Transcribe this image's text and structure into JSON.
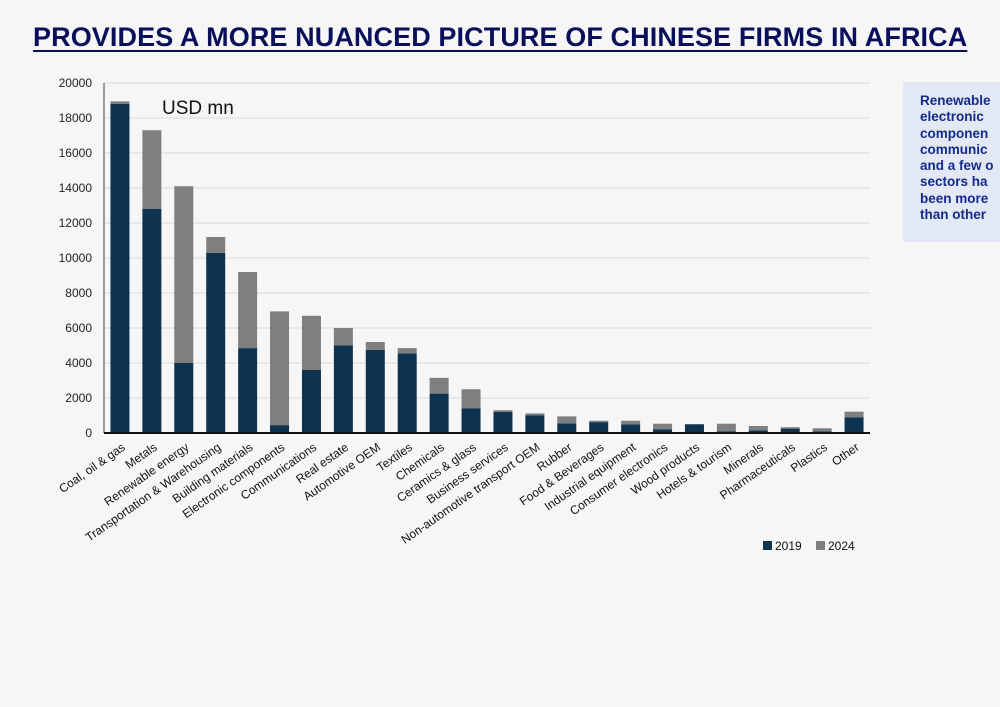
{
  "slide": {
    "title": "PROVIDES A MORE NUANCED PICTURE OF CHINESE FIRMS IN AFRICA",
    "callout_lines": [
      "Renewable",
      "electronic",
      "componen",
      "communic",
      "and a few o",
      "sectors ha",
      "been more",
      "than other"
    ]
  },
  "colors": {
    "series_2019": "#0d3350",
    "series_2024": "#7f7f7f",
    "grid": "#d9d9d9"
  },
  "chart_data": {
    "type": "bar",
    "stacked": true,
    "unit_label": "USD mn",
    "ylim": [
      0,
      20000
    ],
    "yticks": [
      0,
      2000,
      4000,
      6000,
      8000,
      10000,
      12000,
      14000,
      16000,
      18000,
      20000
    ],
    "grid": true,
    "legend_position": "bottom-right",
    "categories": [
      "Coal, oil & gas",
      "Metals",
      "Renewable energy",
      "Transportation & Warehousing",
      "Building materials",
      "Electronic components",
      "Communications",
      "Real estate",
      "Automotive OEM",
      "Textiles",
      "Chemicals",
      "Ceramics & glass",
      "Business services",
      "Non-automotive transport OEM",
      "Rubber",
      "Food & Beverages",
      "Industrial equipment",
      "Consumer electronics",
      "Wood products",
      "Hotels & tourism",
      "Minerals",
      "Pharmaceuticals",
      "Plastics",
      "Other"
    ],
    "series": [
      {
        "name": "2019",
        "values": [
          18800,
          12800,
          4000,
          10300,
          4850,
          450,
          3600,
          5000,
          4750,
          4550,
          2250,
          1400,
          1200,
          1000,
          550,
          620,
          500,
          200,
          500,
          100,
          150,
          250,
          100,
          900
        ]
      },
      {
        "name": "2024",
        "values": [
          150,
          4500,
          10100,
          900,
          4350,
          6500,
          3100,
          1000,
          450,
          300,
          900,
          1100,
          100,
          120,
          400,
          80,
          200,
          330,
          0,
          430,
          250,
          80,
          170,
          320
        ]
      }
    ]
  }
}
